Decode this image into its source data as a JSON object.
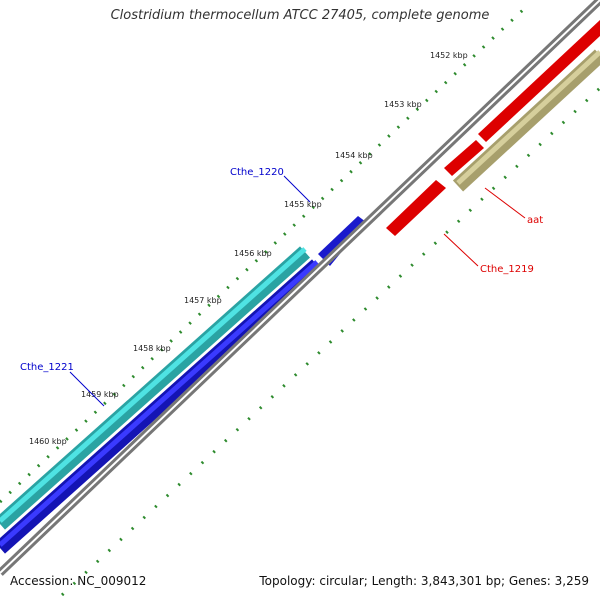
{
  "title": "Clostridium thermocellum ATCC 27405, complete genome",
  "footer": {
    "accession": "Accession: NC_009012",
    "stats": "Topology: circular; Length: 3,843,301 bp; Genes: 3,259"
  },
  "ticks": [
    "1452 kbp",
    "1453 kbp",
    "1454 kbp",
    "1455 kbp",
    "1456 kbp",
    "1457 kbp",
    "1458 kbp",
    "1459 kbp",
    "1460 kbp"
  ],
  "genes": [
    {
      "label": "Cthe_1220",
      "color": "#0000cc"
    },
    {
      "label": "Cthe_1221",
      "color": "#0000cc"
    },
    {
      "label": "aat",
      "color": "#dd0000"
    },
    {
      "label": "Cthe_1219",
      "color": "#dd0000"
    }
  ],
  "colors": {
    "backbone": "#808080",
    "forward_cds": "#1a1acc",
    "forward_rna": "#33cccc",
    "reverse_cds": "#e01010",
    "reverse_rna": "#c8c08a",
    "gc_dots": "#2e8b2e"
  }
}
